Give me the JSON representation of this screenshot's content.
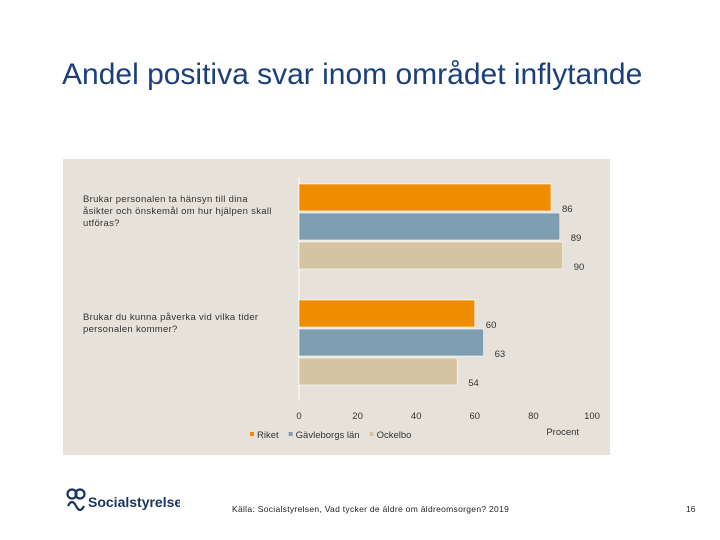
{
  "title": "Andel positiva svar inom området inflytande",
  "source": "Källa: Socialstyrelsen, Vad tycker de äldre om äldreomsorgen? 2019",
  "page_number": "16",
  "logo_text": "Socialstyrelsen",
  "chart_data": {
    "type": "bar",
    "orientation": "horizontal",
    "categories": [
      "Brukar personalen ta hänsyn till dina åsikter och önskemål om hur hjälpen skall utföras?",
      "Brukar du kunna påverka vid vilka tider personalen kommer?"
    ],
    "series": [
      {
        "name": "Riket",
        "color": "#ef8c00",
        "values": [
          86,
          60
        ]
      },
      {
        "name": "Gävleborgs län",
        "color": "#7f9db1",
        "values": [
          89,
          63
        ]
      },
      {
        "name": "Ockelbo",
        "color": "#d5c4a1",
        "values": [
          90,
          54
        ]
      }
    ],
    "xlim": [
      0,
      100
    ],
    "xticks": [
      "0",
      "20",
      "40",
      "60",
      "80",
      "100"
    ],
    "xlabel": "Procent",
    "legend_position": "bottom",
    "grid": false,
    "data_labels": true
  }
}
